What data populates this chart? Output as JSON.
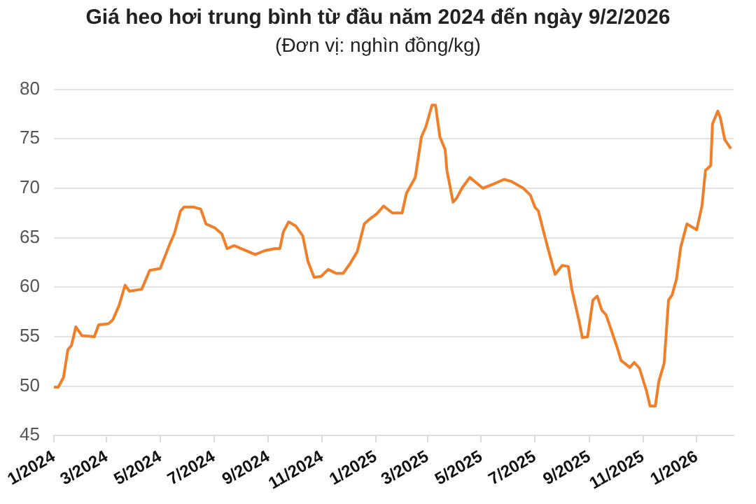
{
  "chart_data": {
    "type": "line",
    "title": "Giá heo hơi trung bình từ đầu năm 2024 đến ngày 9/2/2026",
    "subtitle": "(Đơn vị: nghìn đồng/kg)",
    "x": [
      "2024-01-01",
      "2024-01-06",
      "2024-01-12",
      "2024-01-17",
      "2024-01-21",
      "2024-01-26",
      "2024-02-02",
      "2024-02-16",
      "2024-02-21",
      "2024-03-03",
      "2024-03-08",
      "2024-03-15",
      "2024-03-22",
      "2024-03-27",
      "2024-04-10",
      "2024-04-19",
      "2024-05-01",
      "2024-05-12",
      "2024-05-17",
      "2024-05-24",
      "2024-05-28",
      "2024-06-08",
      "2024-06-16",
      "2024-06-22",
      "2024-07-02",
      "2024-07-10",
      "2024-07-16",
      "2024-07-24",
      "2024-08-17",
      "2024-08-28",
      "2024-09-08",
      "2024-09-14",
      "2024-09-18",
      "2024-09-24",
      "2024-10-02",
      "2024-10-10",
      "2024-10-16",
      "2024-10-23",
      "2024-10-31",
      "2024-11-08",
      "2024-11-17",
      "2024-11-25",
      "2024-12-03",
      "2024-12-11",
      "2024-12-19",
      "2024-12-24",
      "2025-01-02",
      "2025-01-10",
      "2025-01-20",
      "2025-01-31",
      "2025-02-05",
      "2025-02-15",
      "2025-02-22",
      "2025-02-27",
      "2025-03-06",
      "2025-03-10",
      "2025-03-15",
      "2025-03-21",
      "2025-03-23",
      "2025-03-30",
      "2025-04-03",
      "2025-04-09",
      "2025-04-18",
      "2025-05-03",
      "2025-05-14",
      "2025-05-27",
      "2025-06-04",
      "2025-06-18",
      "2025-06-26",
      "2025-07-01",
      "2025-07-05",
      "2025-07-11",
      "2025-07-16",
      "2025-07-24",
      "2025-08-01",
      "2025-08-08",
      "2025-08-12",
      "2025-08-20",
      "2025-08-24",
      "2025-08-30",
      "2025-09-05",
      "2025-09-10",
      "2025-09-15",
      "2025-09-20",
      "2025-09-25",
      "2025-10-03",
      "2025-10-07",
      "2025-10-17",
      "2025-10-22",
      "2025-10-28",
      "2025-11-05",
      "2025-11-09",
      "2025-11-15",
      "2025-11-19",
      "2025-11-25",
      "2025-11-30",
      "2025-12-04",
      "2025-12-09",
      "2025-12-14",
      "2025-12-21",
      "2026-01-01",
      "2026-01-07",
      "2026-01-11",
      "2026-01-17",
      "2026-01-19",
      "2026-01-25",
      "2026-01-28",
      "2026-02-02",
      "2026-02-09"
    ],
    "series": [
      {
        "color": "#f07f2a",
        "values": [
          49.9,
          49.9,
          50.9,
          53.7,
          54.1,
          56.0,
          55.1,
          55.0,
          56.2,
          56.3,
          56.7,
          58.1,
          60.2,
          59.6,
          59.8,
          61.7,
          61.9,
          64.4,
          65.4,
          67.7,
          68.1,
          68.1,
          67.9,
          66.4,
          66.0,
          65.4,
          63.9,
          64.2,
          63.3,
          63.7,
          63.9,
          63.9,
          65.6,
          66.6,
          66.2,
          65.2,
          62.6,
          61.0,
          61.1,
          61.8,
          61.4,
          61.4,
          62.4,
          63.6,
          66.4,
          66.8,
          67.4,
          68.2,
          67.5,
          67.5,
          69.5,
          71.1,
          75.2,
          76.2,
          78.4,
          78.4,
          75.2,
          73.9,
          71.8,
          68.6,
          69.0,
          70.0,
          71.1,
          70.0,
          70.4,
          70.9,
          70.7,
          70.0,
          69.3,
          68.1,
          67.7,
          65.6,
          63.9,
          61.3,
          62.2,
          62.1,
          59.8,
          56.7,
          54.9,
          55.0,
          58.7,
          59.1,
          57.7,
          57.2,
          55.9,
          53.8,
          52.6,
          51.9,
          52.4,
          51.8,
          49.5,
          48.0,
          48.0,
          50.5,
          52.3,
          58.7,
          59.2,
          60.8,
          64.1,
          66.4,
          65.8,
          68.2,
          71.8,
          72.3,
          76.5,
          77.8,
          77.1,
          74.9,
          74.0
        ]
      }
    ],
    "xlim": [
      "2024-01-01",
      "2026-02-12"
    ],
    "xticks": [
      {
        "value": "2024-01-01",
        "label": "1/2024"
      },
      {
        "value": "2024-03-01",
        "label": "3/2024"
      },
      {
        "value": "2024-05-01",
        "label": "5/2024"
      },
      {
        "value": "2024-07-01",
        "label": "7/2024"
      },
      {
        "value": "2024-09-01",
        "label": "9/2024"
      },
      {
        "value": "2024-11-01",
        "label": "11/2024"
      },
      {
        "value": "2025-01-01",
        "label": "1/2025"
      },
      {
        "value": "2025-03-01",
        "label": "3/2025"
      },
      {
        "value": "2025-05-01",
        "label": "5/2025"
      },
      {
        "value": "2025-07-01",
        "label": "7/2025"
      },
      {
        "value": "2025-09-01",
        "label": "9/2025"
      },
      {
        "value": "2025-11-01",
        "label": "11/2025"
      },
      {
        "value": "2026-01-01",
        "label": "1/2026"
      }
    ],
    "ylim": [
      45,
      80
    ],
    "yticks": [
      45,
      50,
      55,
      60,
      65,
      70,
      75,
      80
    ],
    "grid": "y",
    "legend": false,
    "marker": "none",
    "line_style": "solid"
  }
}
